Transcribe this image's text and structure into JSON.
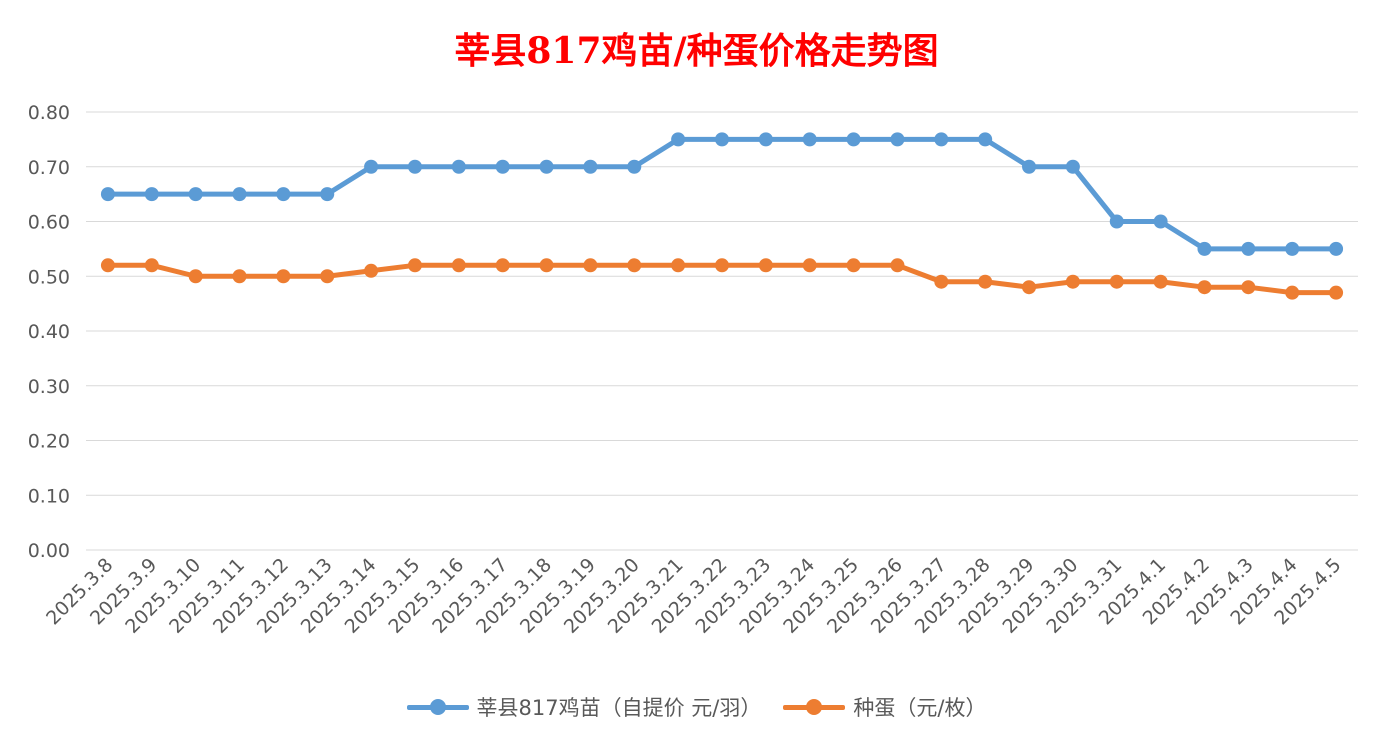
{
  "chart_data": {
    "type": "line",
    "title": "莘县817鸡苗/种蛋价格走势图",
    "categories": [
      "2025.3.8",
      "2025.3.9",
      "2025.3.10",
      "2025.3.11",
      "2025.3.12",
      "2025.3.13",
      "2025.3.14",
      "2025.3.15",
      "2025.3.16",
      "2025.3.17",
      "2025.3.18",
      "2025.3.19",
      "2025.3.20",
      "2025.3.21",
      "2025.3.22",
      "2025.3.23",
      "2025.3.24",
      "2025.3.25",
      "2025.3.26",
      "2025.3.27",
      "2025.3.28",
      "2025.3.29",
      "2025.3.30",
      "2025.3.31",
      "2025.4.1",
      "2025.4.2",
      "2025.4.3",
      "2025.4.4",
      "2025.4.5"
    ],
    "series": [
      {
        "name": "莘县817鸡苗（自提价 元/羽）",
        "color": "#5b9bd5",
        "values": [
          0.65,
          0.65,
          0.65,
          0.65,
          0.65,
          0.65,
          0.7,
          0.7,
          0.7,
          0.7,
          0.7,
          0.7,
          0.7,
          0.75,
          0.75,
          0.75,
          0.75,
          0.75,
          0.75,
          0.75,
          0.75,
          0.7,
          0.7,
          0.6,
          0.6,
          0.55,
          0.55,
          0.55,
          0.55
        ]
      },
      {
        "name": "种蛋（元/枚）",
        "color": "#ed7d31",
        "values": [
          0.52,
          0.52,
          0.5,
          0.5,
          0.5,
          0.5,
          0.51,
          0.52,
          0.52,
          0.52,
          0.52,
          0.52,
          0.52,
          0.52,
          0.52,
          0.52,
          0.52,
          0.52,
          0.52,
          0.49,
          0.49,
          0.48,
          0.49,
          0.49,
          0.49,
          0.48,
          0.48,
          0.47,
          0.47
        ]
      }
    ],
    "y_ticks": [
      "0.00",
      "0.10",
      "0.20",
      "0.30",
      "0.40",
      "0.50",
      "0.60",
      "0.70",
      "0.80"
    ],
    "ylim": [
      0,
      0.8
    ],
    "grid": true,
    "legend_position": "bottom"
  }
}
